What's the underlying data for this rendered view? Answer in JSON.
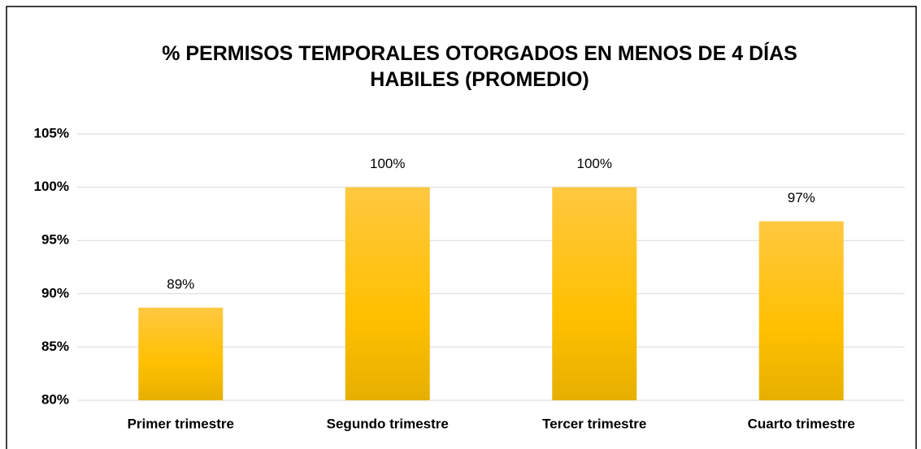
{
  "chart_data": {
    "type": "bar",
    "title": "% PERMISOS TEMPORALES OTORGADOS EN MENOS DE 4 DÍAS HABILES (PROMEDIO)",
    "categories": [
      "Primer trimestre",
      "Segundo trimestre",
      "Tercer trimestre",
      "Cuarto trimestre"
    ],
    "values": [
      88.7,
      100,
      100,
      96.8
    ],
    "value_labels": [
      "89%",
      "100%",
      "100%",
      "97%"
    ],
    "color": "#ffc000",
    "ylim": [
      80,
      105
    ],
    "yticks": [
      {
        "value": 80,
        "label": "80%"
      },
      {
        "value": 85,
        "label": "85%"
      },
      {
        "value": 90,
        "label": "90%"
      },
      {
        "value": 95,
        "label": "95%"
      },
      {
        "value": 100,
        "label": "100%"
      },
      {
        "value": 105,
        "label": "105%"
      }
    ],
    "grid": true
  }
}
